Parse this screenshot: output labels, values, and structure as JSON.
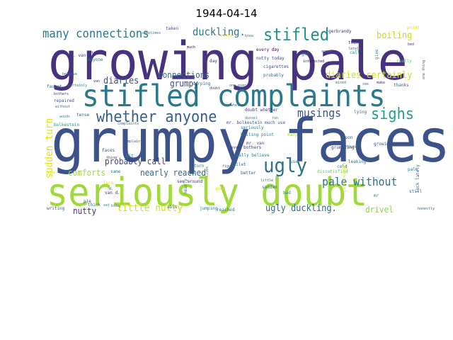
{
  "title": "1944-04-14",
  "words": [
    {
      "text": "growing pale",
      "color": "#46327e"
    },
    {
      "text": "grumpy faces",
      "color": "#3b528b"
    },
    {
      "text": "seriously doubt",
      "color": "#a0da39"
    },
    {
      "text": "stifled complaints",
      "color": "#2a788e"
    },
    {
      "text": "whether anyone",
      "color": "#365d8d"
    },
    {
      "text": "many connections",
      "color": "#2a788e"
    },
    {
      "text": "duckling.",
      "color": "#2a788e"
    },
    {
      "text": "stifled",
      "color": "#21918c"
    },
    {
      "text": "sighs",
      "color": "#1fa187"
    },
    {
      "text": "ugly",
      "color": "#2c728e"
    },
    {
      "text": "musings",
      "color": "#3b528b"
    },
    {
      "text": "pale without",
      "color": "#2c728e"
    },
    {
      "text": "boiling",
      "color": "#bddf26"
    },
    {
      "text": "diaries certainly",
      "color": "#d2e21b"
    },
    {
      "text": "diaries",
      "color": "#3b528b"
    },
    {
      "text": "connections",
      "color": "#31688e"
    },
    {
      "text": "grumpy",
      "color": "#3e4989"
    },
    {
      "text": "sudden turn",
      "color": "#dde318"
    },
    {
      "text": "comforts",
      "color": "#9fda3a"
    },
    {
      "text": "probably call",
      "color": "#404588"
    },
    {
      "text": "nearly reached",
      "color": "#31688e"
    },
    {
      "text": "ugly duckling.",
      "color": "#31688e"
    },
    {
      "text": "little nutty",
      "color": "#d0e11c"
    },
    {
      "text": "nutty",
      "color": "#46327e"
    },
    {
      "text": "drivel",
      "color": "#8bd646"
    },
    {
      "text": "taken",
      "color": "#3b528b"
    },
    {
      "text": "gerbrandy",
      "color": "#46327e"
    },
    {
      "text": "point",
      "color": "#dde318"
    },
    {
      "text": "sometimes",
      "color": "#2a788e"
    },
    {
      "text": "mr. van",
      "color": "#46327e"
    },
    {
      "text": "anyone",
      "color": "#2a788e"
    },
    {
      "text": "much",
      "color": "#440154"
    },
    {
      "text": "every day",
      "color": "#440154"
    },
    {
      "text": "nutty today",
      "color": "#3e4989"
    },
    {
      "text": "cigarettes",
      "color": "#3b528b"
    },
    {
      "text": "probably",
      "color": "#2c728e"
    },
    {
      "text": "interested",
      "color": "#440154"
    },
    {
      "text": "get",
      "color": "#2a788e"
    },
    {
      "text": "annex",
      "color": "#2a788e"
    },
    {
      "text": "call",
      "color": "#21918c"
    },
    {
      "text": "things",
      "color": "#46327e"
    },
    {
      "text": "lately",
      "color": "#2a788e"
    },
    {
      "text": "one thing",
      "color": "#3b528b"
    },
    {
      "text": "really",
      "color": "#5ec962"
    },
    {
      "text": "make",
      "color": "#46327e"
    },
    {
      "text": "thanks",
      "color": "#31688e"
    },
    {
      "text": "see",
      "color": "#2a788e"
    },
    {
      "text": "mixed",
      "color": "#2a788e"
    },
    {
      "text": "carping",
      "color": "#31688e"
    },
    {
      "text": "one even",
      "color": "#2a788e"
    },
    {
      "text": "believe",
      "color": "#31688e"
    },
    {
      "text": "faucet",
      "color": "#2a788e"
    },
    {
      "text": "certainly",
      "color": "#2a788e"
    },
    {
      "text": "bothers",
      "color": "#46327e"
    },
    {
      "text": "repaired",
      "color": "#3b528b"
    },
    {
      "text": "without",
      "color": "#2a788e"
    },
    {
      "text": "van",
      "color": "#46327e"
    },
    {
      "text": "tense",
      "color": "#31688e"
    },
    {
      "text": "woods",
      "color": "#21918c"
    },
    {
      "text": "bolkestein",
      "color": "#21918c"
    },
    {
      "text": "complaints",
      "color": "#2a788e"
    },
    {
      "text": "mr. bolkestein much use",
      "color": "#3b528b"
    },
    {
      "text": "doubt whether",
      "color": "#46327e"
    },
    {
      "text": "dussel",
      "color": "#2a788e"
    },
    {
      "text": "run",
      "color": "#2a788e"
    },
    {
      "text": "whether",
      "color": "#31688e"
    },
    {
      "text": "seriously",
      "color": "#2a788e"
    },
    {
      "text": "boiling point",
      "color": "#2a788e"
    },
    {
      "text": "mr. van",
      "color": "#3b528b"
    },
    {
      "text": "many",
      "color": "#a0da39"
    },
    {
      "text": "lying",
      "color": "#2a788e"
    },
    {
      "text": "soon",
      "color": "#31688e"
    },
    {
      "text": "around",
      "color": "#2a788e"
    },
    {
      "text": "growing",
      "color": "#3b528b"
    },
    {
      "text": "grumbling",
      "color": "#46327e"
    },
    {
      "text": "leaking",
      "color": "#31688e"
    },
    {
      "text": "cold",
      "color": "#31688e"
    },
    {
      "text": "pale",
      "color": "#2a788e"
    },
    {
      "text": "dissatisfied",
      "color": "#5ec962"
    },
    {
      "text": "faces",
      "color": "#3b528b"
    },
    {
      "text": "kit",
      "color": "#21918c"
    },
    {
      "text": "pie",
      "color": "#3b528b"
    },
    {
      "text": "think",
      "color": "#2a788e"
    },
    {
      "text": "today",
      "color": "#2a788e"
    },
    {
      "text": "thing",
      "color": "#46327e"
    },
    {
      "text": "same",
      "color": "#2a788e"
    },
    {
      "text": "able",
      "color": "#2a788e"
    },
    {
      "text": "see around",
      "color": "#46327e"
    },
    {
      "text": "even bothers",
      "color": "#46327e"
    },
    {
      "text": "toilet",
      "color": "#2a788e"
    },
    {
      "text": "use",
      "color": "#2a788e"
    },
    {
      "text": "better",
      "color": "#31688e"
    },
    {
      "text": "little",
      "color": "#31688e"
    },
    {
      "text": "sudden",
      "color": "#2a788e"
    },
    {
      "text": "bad",
      "color": "#2a788e"
    },
    {
      "text": "good example",
      "color": "#dde318"
    },
    {
      "text": "luck lately",
      "color": "#31688e"
    },
    {
      "text": "mr",
      "color": "#2a788e"
    },
    {
      "text": "still",
      "color": "#31688e"
    },
    {
      "text": "honestly",
      "color": "#31688e"
    },
    {
      "text": "writing",
      "color": "#3b528b"
    },
    {
      "text": "d.",
      "color": "#46327e"
    },
    {
      "text": "van d.",
      "color": "#46327e"
    },
    {
      "text": "set",
      "color": "#2a788e"
    },
    {
      "text": "jumping",
      "color": "#2a788e"
    },
    {
      "text": "reached",
      "color": "#2a788e"
    },
    {
      "text": "figure",
      "color": "#2a788e"
    },
    {
      "text": "really believe",
      "color": "#2a788e"
    },
    {
      "text": "lives",
      "color": "#2a788e"
    },
    {
      "text": "good",
      "color": "#dde318"
    },
    {
      "text": "turn",
      "color": "#2a788e"
    },
    {
      "text": "doubt",
      "color": "#46327e"
    },
    {
      "text": "day",
      "color": "#46327e"
    },
    {
      "text": "etc",
      "color": "#46327e"
    },
    {
      "text": "know",
      "color": "#2a788e"
    },
    {
      "text": "another",
      "color": "#dde318"
    },
    {
      "text": "nearly",
      "color": "#2a788e"
    },
    {
      "text": "luck",
      "color": "#dde318"
    },
    {
      "text": "complaints",
      "color": "#3b528b"
    },
    {
      "text": "give",
      "color": "#21918c"
    },
    {
      "text": "bed",
      "color": "#46327e"
    },
    {
      "text": "hour",
      "color": "#dde318"
    }
  ]
}
